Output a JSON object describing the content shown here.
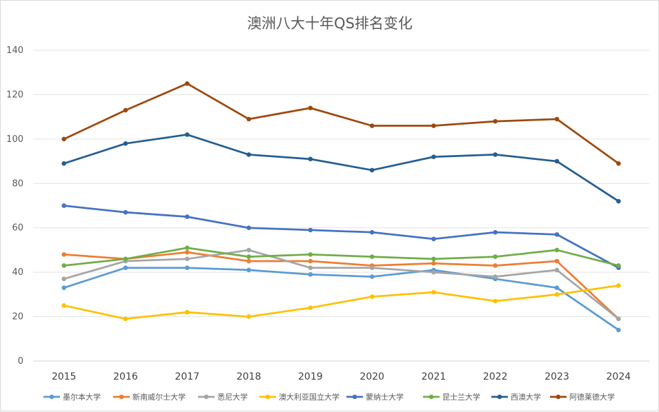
{
  "chart_data": {
    "type": "line",
    "title": "澳洲八大十年QS排名变化",
    "xlabel": "",
    "ylabel": "",
    "ylim": [
      0,
      140
    ],
    "yticks": [
      0,
      20,
      40,
      60,
      80,
      100,
      120,
      140
    ],
    "categories": [
      "2015",
      "2016",
      "2017",
      "2018",
      "2019",
      "2020",
      "2021",
      "2022",
      "2023",
      "2024"
    ],
    "grid": true,
    "legend_position": "bottom",
    "series": [
      {
        "name": "墨尔本大学",
        "color": "#5b9bd5",
        "values": [
          33,
          42,
          42,
          41,
          39,
          38,
          41,
          37,
          33,
          14
        ]
      },
      {
        "name": "新南威尔士大学",
        "color": "#ed7d31",
        "values": [
          48,
          46,
          49,
          45,
          45,
          43,
          44,
          43,
          45,
          19
        ]
      },
      {
        "name": "悉尼大学",
        "color": "#a5a5a5",
        "values": [
          37,
          45,
          46,
          50,
          42,
          42,
          40,
          38,
          41,
          19
        ]
      },
      {
        "name": "澳大利亚国立大学",
        "color": "#ffc000",
        "values": [
          25,
          19,
          22,
          20,
          24,
          29,
          31,
          27,
          30,
          34
        ]
      },
      {
        "name": "蒙纳士大学",
        "color": "#4472c4",
        "values": [
          70,
          67,
          65,
          60,
          59,
          58,
          55,
          58,
          57,
          42
        ]
      },
      {
        "name": "昆士兰大学",
        "color": "#70ad47",
        "values": [
          43,
          46,
          51,
          47,
          48,
          47,
          46,
          47,
          50,
          43
        ]
      },
      {
        "name": "西澳大学",
        "color": "#255e91",
        "values": [
          89,
          98,
          102,
          93,
          91,
          86,
          92,
          93,
          90,
          72
        ]
      },
      {
        "name": "阿德莱德大学",
        "color": "#9e480e",
        "values": [
          100,
          113,
          125,
          109,
          114,
          106,
          106,
          108,
          109,
          89
        ]
      }
    ]
  }
}
